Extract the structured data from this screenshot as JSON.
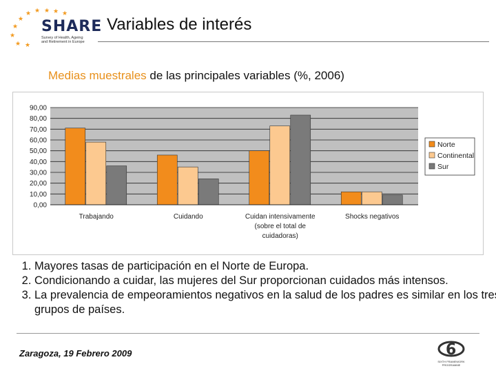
{
  "header": {
    "logo_text": "SHARE",
    "logo_subtitle": [
      "Survey of Health, Ageing",
      "and Retirement in Europe"
    ],
    "title": "Variables de interés"
  },
  "subtitle": {
    "highlight": "Medias muestrales",
    "rest": " de las principales variables (%, 2006)"
  },
  "colors": {
    "norte": "#f28c1c",
    "continental": "#fcc990",
    "sur": "#7a7a7a",
    "plot_bg": "#c0c0c0"
  },
  "chart_data": {
    "type": "bar",
    "categories": [
      [
        "Trabajando"
      ],
      [
        "Cuidando"
      ],
      [
        "Cuidan intensivamente",
        "(sobre el total de",
        "cuidadoras)"
      ],
      [
        "Shocks negativos"
      ]
    ],
    "series": [
      {
        "name": "Norte",
        "values": [
          71,
          46,
          50,
          12
        ]
      },
      {
        "name": "Continental",
        "values": [
          58,
          35,
          73,
          12
        ]
      },
      {
        "name": "Sur",
        "values": [
          36,
          24,
          83,
          9
        ]
      }
    ],
    "y_ticks": [
      "90,00",
      "80,00",
      "70,00",
      "60,00",
      "50,00",
      "40,00",
      "30,00",
      "20,00",
      "10,00",
      "0,00"
    ],
    "ylim": [
      0,
      90
    ],
    "grid": true,
    "legend": "right"
  },
  "notes": [
    "Mayores tasas de participación en el Norte de Europa.",
    "Condicionando a cuidar, las mujeres del Sur proporcionan cuidados más intensos.",
    "La prevalencia de empeoramientos negativos en la salud de los padres es similar en los tres grupos de países."
  ],
  "footer": {
    "text": "Zaragoza, 19 Febrero 2009"
  },
  "program_logo": {
    "text": "SIXTH FRAMEWORK PROGRAMME"
  }
}
